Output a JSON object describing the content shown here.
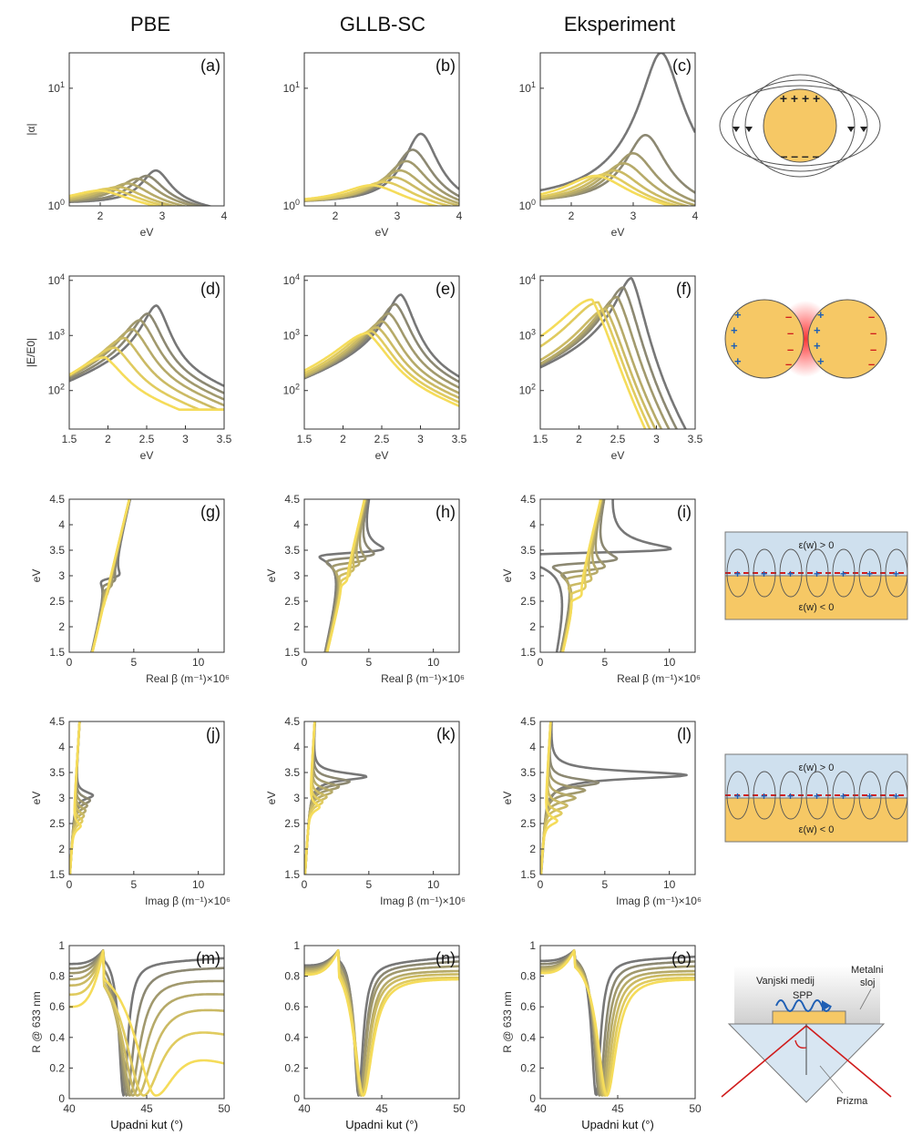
{
  "column_titles": [
    "PBE",
    "GLLB-SC",
    "Eksperiment"
  ],
  "colors": {
    "series_start": "#777777",
    "series_end": "#F5DC5A",
    "gold": "#F6C865",
    "light_blue": "#CFE0EE",
    "charge_plus": "#1f5fb4",
    "charge_minus": "#d01c1c",
    "axis": "#333333"
  },
  "chart_data": [
    {
      "panel": "(a)",
      "type": "line",
      "xlabel": "eV",
      "ylabel": "|α|",
      "xlim": [
        1.5,
        4
      ],
      "ylim": [
        1,
        20
      ],
      "yscale": "log",
      "xticks": [
        "2",
        "3",
        "4"
      ],
      "yticks": [
        "10^0",
        "10^1"
      ],
      "series": [
        {
          "peak_x": 2.9,
          "peak_y": 2.0
        },
        {
          "peak_x": 2.75,
          "peak_y": 1.8
        },
        {
          "peak_x": 2.6,
          "peak_y": 1.7
        },
        {
          "peak_x": 2.45,
          "peak_y": 1.55
        },
        {
          "peak_x": 2.3,
          "peak_y": 1.45
        },
        {
          "peak_x": 2.15,
          "peak_y": 1.4
        },
        {
          "peak_x": 2.0,
          "peak_y": 1.35
        }
      ]
    },
    {
      "panel": "(b)",
      "type": "line",
      "xlabel": "eV",
      "ylabel": "",
      "xlim": [
        1.5,
        4
      ],
      "ylim": [
        1,
        20
      ],
      "yscale": "log",
      "xticks": [
        "2",
        "3",
        "4"
      ],
      "yticks": [
        "10^0",
        "10^1"
      ],
      "series": [
        {
          "peak_x": 3.38,
          "peak_y": 4.1
        },
        {
          "peak_x": 3.25,
          "peak_y": 3.0
        },
        {
          "peak_x": 3.15,
          "peak_y": 2.4
        },
        {
          "peak_x": 3.05,
          "peak_y": 2.0
        },
        {
          "peak_x": 2.95,
          "peak_y": 1.75
        },
        {
          "peak_x": 2.8,
          "peak_y": 1.6
        },
        {
          "peak_x": 2.6,
          "peak_y": 1.5
        }
      ]
    },
    {
      "panel": "(c)",
      "type": "line",
      "xlabel": "eV",
      "ylabel": "",
      "xlim": [
        1.5,
        4
      ],
      "ylim": [
        1,
        20
      ],
      "yscale": "log",
      "xticks": [
        "2",
        "3",
        "4"
      ],
      "yticks": [
        "10^0",
        "10^1"
      ],
      "series": [
        {
          "peak_x": 3.45,
          "peak_y": 20
        },
        {
          "peak_x": 3.2,
          "peak_y": 4.0
        },
        {
          "peak_x": 3.0,
          "peak_y": 2.8
        },
        {
          "peak_x": 2.85,
          "peak_y": 2.3
        },
        {
          "peak_x": 2.7,
          "peak_y": 2.0
        },
        {
          "peak_x": 2.55,
          "peak_y": 1.85
        },
        {
          "peak_x": 2.4,
          "peak_y": 1.8
        }
      ]
    },
    {
      "panel": "(d)",
      "type": "line",
      "xlabel": "eV",
      "ylabel": "|E/E0|",
      "xlim": [
        1.5,
        3.5
      ],
      "ylim": [
        20,
        12000
      ],
      "yscale": "log",
      "xticks": [
        "1.5",
        "2",
        "2.5",
        "3",
        "3.5"
      ],
      "yticks": [
        "10^2",
        "10^3",
        "10^4"
      ],
      "series": [
        {
          "peak_x": 2.63,
          "peak_y": 3500
        },
        {
          "peak_x": 2.52,
          "peak_y": 2500
        },
        {
          "peak_x": 2.42,
          "peak_y": 1900
        },
        {
          "peak_x": 2.33,
          "peak_y": 1300
        },
        {
          "peak_x": 2.22,
          "peak_y": 900
        },
        {
          "peak_x": 2.1,
          "peak_y": 600
        },
        {
          "peak_x": 1.97,
          "peak_y": 400
        }
      ]
    },
    {
      "panel": "(e)",
      "type": "line",
      "xlabel": "eV",
      "ylabel": "",
      "xlim": [
        1.5,
        3.5
      ],
      "ylim": [
        20,
        12000
      ],
      "yscale": "log",
      "xticks": [
        "1.5",
        "2",
        "2.5",
        "3",
        "3.5"
      ],
      "yticks": [
        "10^2",
        "10^3",
        "10^4"
      ],
      "series": [
        {
          "peak_x": 2.75,
          "peak_y": 5500
        },
        {
          "peak_x": 2.68,
          "peak_y": 3700
        },
        {
          "peak_x": 2.6,
          "peak_y": 2500
        },
        {
          "peak_x": 2.52,
          "peak_y": 1800
        },
        {
          "peak_x": 2.45,
          "peak_y": 1400
        },
        {
          "peak_x": 2.38,
          "peak_y": 1200
        },
        {
          "peak_x": 2.32,
          "peak_y": 1100
        }
      ]
    },
    {
      "panel": "(f)",
      "type": "line",
      "xlabel": "eV",
      "ylabel": "",
      "xlim": [
        1.5,
        3.5
      ],
      "ylim": [
        20,
        12000
      ],
      "yscale": "log",
      "xticks": [
        "1.5",
        "2",
        "2.5",
        "3",
        "3.5"
      ],
      "yticks": [
        "10^2",
        "10^3",
        "10^4"
      ],
      "series": [
        {
          "peak_x": 2.68,
          "peak_y": 11000
        },
        {
          "peak_x": 2.58,
          "peak_y": 7500
        },
        {
          "peak_x": 2.5,
          "peak_y": 5000
        },
        {
          "peak_x": 2.42,
          "peak_y": 3500
        },
        {
          "peak_x": 2.35,
          "peak_y": 3000
        },
        {
          "peak_x": 2.25,
          "peak_y": 4000
        },
        {
          "peak_x": 2.17,
          "peak_y": 4500
        }
      ]
    },
    {
      "panel": "(g)",
      "type": "line",
      "xlabel": "Real β (m⁻¹)×10⁶",
      "ylabel": "eV",
      "xlim": [
        0,
        12
      ],
      "ylim": [
        1.5,
        4.5
      ],
      "xticks": [
        "0",
        "5",
        "10"
      ],
      "yticks": [
        "1.5",
        "2",
        "2.5",
        "3",
        "3.5",
        "4",
        "4.5"
      ],
      "series": [
        {
          "res_y": 2.95,
          "res_dx": 0.8
        },
        {
          "res_y": 2.85,
          "res_dx": 0.5
        },
        {
          "res_y": 2.75,
          "res_dx": 0.3
        },
        {
          "res_y": 2.7,
          "res_dx": 0.15
        },
        {
          "res_y": 2.6,
          "res_dx": 0.1
        },
        {
          "res_y": 2.5,
          "res_dx": 0.05
        },
        {
          "res_y": 2.4,
          "res_dx": 0.02
        }
      ]
    },
    {
      "panel": "(h)",
      "type": "line",
      "xlabel": "Real β (m⁻¹)×10⁶",
      "ylabel": "eV",
      "xlim": [
        0,
        12
      ],
      "ylim": [
        1.5,
        4.5
      ],
      "xticks": [
        "0",
        "5",
        "10"
      ],
      "yticks": [
        "1.5",
        "2",
        "2.5",
        "3",
        "3.5",
        "4",
        "4.5"
      ],
      "series": [
        {
          "res_y": 3.45,
          "res_dx": 3.0
        },
        {
          "res_y": 3.35,
          "res_dx": 2.2
        },
        {
          "res_y": 3.25,
          "res_dx": 1.5
        },
        {
          "res_y": 3.15,
          "res_dx": 1.0
        },
        {
          "res_y": 3.05,
          "res_dx": 0.6
        },
        {
          "res_y": 2.95,
          "res_dx": 0.35
        },
        {
          "res_y": 2.85,
          "res_dx": 0.2
        }
      ]
    },
    {
      "panel": "(i)",
      "type": "line",
      "xlabel": "Real β (m⁻¹)×10⁶",
      "ylabel": "eV",
      "xlim": [
        0,
        12
      ],
      "ylim": [
        1.5,
        4.5
      ],
      "xticks": [
        "0",
        "5",
        "10"
      ],
      "yticks": [
        "1.5",
        "2",
        "2.5",
        "3",
        "3.5",
        "4",
        "4.5"
      ],
      "series": [
        {
          "res_y": 3.45,
          "res_dx": 8.0
        },
        {
          "res_y": 3.25,
          "res_dx": 3.0
        },
        {
          "res_y": 3.1,
          "res_dx": 2.0
        },
        {
          "res_y": 3.0,
          "res_dx": 1.4
        },
        {
          "res_y": 2.85,
          "res_dx": 1.0
        },
        {
          "res_y": 2.7,
          "res_dx": 0.6
        },
        {
          "res_y": 2.55,
          "res_dx": 0.4
        }
      ]
    },
    {
      "panel": "(j)",
      "type": "line",
      "xlabel": "Imag β (m⁻¹)×10⁶",
      "ylabel": "eV",
      "xlim": [
        0,
        12
      ],
      "ylim": [
        1.5,
        4.5
      ],
      "xticks": [
        "0",
        "5",
        "10"
      ],
      "yticks": [
        "1.5",
        "2",
        "2.5",
        "3",
        "3.5",
        "4",
        "4.5"
      ],
      "series": [
        {
          "res_y": 3.05,
          "peak": 1.4
        },
        {
          "res_y": 2.95,
          "peak": 1.2
        },
        {
          "res_y": 2.85,
          "peak": 1.0
        },
        {
          "res_y": 2.75,
          "peak": 0.9
        },
        {
          "res_y": 2.65,
          "peak": 0.8
        },
        {
          "res_y": 2.55,
          "peak": 0.7
        },
        {
          "res_y": 2.45,
          "peak": 0.6
        }
      ]
    },
    {
      "panel": "(k)",
      "type": "line",
      "xlabel": "Imag β (m⁻¹)×10⁶",
      "ylabel": "eV",
      "xlim": [
        0,
        12
      ],
      "ylim": [
        1.5,
        4.5
      ],
      "xticks": [
        "0",
        "5",
        "10"
      ],
      "yticks": [
        "1.5",
        "2",
        "2.5",
        "3",
        "3.5",
        "4",
        "4.5"
      ],
      "series": [
        {
          "res_y": 3.42,
          "peak": 4.3
        },
        {
          "res_y": 3.32,
          "peak": 3.0
        },
        {
          "res_y": 3.22,
          "peak": 2.2
        },
        {
          "res_y": 3.12,
          "peak": 1.7
        },
        {
          "res_y": 3.02,
          "peak": 1.3
        },
        {
          "res_y": 2.92,
          "peak": 1.0
        },
        {
          "res_y": 2.82,
          "peak": 0.8
        }
      ]
    },
    {
      "panel": "(l)",
      "type": "line",
      "xlabel": "Imag β (m⁻¹)×10⁶",
      "ylabel": "eV",
      "xlim": [
        0,
        12
      ],
      "ylim": [
        1.5,
        4.5
      ],
      "xticks": [
        "0",
        "5",
        "10"
      ],
      "yticks": [
        "1.5",
        "2",
        "2.5",
        "3",
        "3.5",
        "4",
        "4.5"
      ],
      "series": [
        {
          "res_y": 3.45,
          "peak": 10.8
        },
        {
          "res_y": 3.3,
          "peak": 4.0
        },
        {
          "res_y": 3.15,
          "peak": 3.0
        },
        {
          "res_y": 3.0,
          "peak": 2.3
        },
        {
          "res_y": 2.85,
          "peak": 1.7
        },
        {
          "res_y": 2.7,
          "peak": 1.3
        },
        {
          "res_y": 2.55,
          "peak": 1.0
        }
      ]
    },
    {
      "panel": "(m)",
      "type": "line",
      "xlabel": "Upadni kut (°)",
      "ylabel": "R @ 633 nm",
      "xlim": [
        40,
        50
      ],
      "ylim": [
        0,
        1
      ],
      "xticks": [
        "40",
        "45",
        "50"
      ],
      "yticks": [
        "0",
        "0.2",
        "0.4",
        "0.6",
        "0.8",
        "1"
      ],
      "series": [
        {
          "base": 0.88,
          "dip_x": 43.5,
          "end": 0.92
        },
        {
          "base": 0.85,
          "dip_x": 43.7,
          "end": 0.86
        },
        {
          "base": 0.82,
          "dip_x": 43.9,
          "end": 0.78
        },
        {
          "base": 0.78,
          "dip_x": 44.1,
          "end": 0.7
        },
        {
          "base": 0.74,
          "dip_x": 44.4,
          "end": 0.6
        },
        {
          "base": 0.68,
          "dip_x": 44.8,
          "end": 0.45
        },
        {
          "base": 0.6,
          "dip_x": 45.6,
          "end": 0.26
        }
      ]
    },
    {
      "panel": "(n)",
      "type": "line",
      "xlabel": "Upadni kut (°)",
      "ylabel": "",
      "xlim": [
        40,
        50
      ],
      "ylim": [
        0,
        1
      ],
      "xticks": [
        "40",
        "45",
        "50"
      ],
      "yticks": [
        "0",
        "0.2",
        "0.4",
        "0.6",
        "0.8",
        "1"
      ],
      "series": [
        {
          "base": 0.87,
          "dip_x": 43.5,
          "end": 0.93
        },
        {
          "base": 0.86,
          "dip_x": 43.6,
          "end": 0.9
        },
        {
          "base": 0.85,
          "dip_x": 43.6,
          "end": 0.87
        },
        {
          "base": 0.84,
          "dip_x": 43.7,
          "end": 0.84
        },
        {
          "base": 0.83,
          "dip_x": 43.7,
          "end": 0.82
        },
        {
          "base": 0.82,
          "dip_x": 43.8,
          "end": 0.8
        },
        {
          "base": 0.81,
          "dip_x": 43.8,
          "end": 0.79
        }
      ]
    },
    {
      "panel": "(o)",
      "type": "line",
      "xlabel": "Upadni kut (°)",
      "ylabel": "R @ 633 nm",
      "xlim": [
        40,
        50
      ],
      "ylim": [
        0,
        1
      ],
      "xticks": [
        "40",
        "45",
        "50"
      ],
      "yticks": [
        "0",
        "0.2",
        "0.4",
        "0.6",
        "0.8",
        "1"
      ],
      "series": [
        {
          "base": 0.9,
          "dip_x": 43.6,
          "end": 0.93
        },
        {
          "base": 0.88,
          "dip_x": 43.8,
          "end": 0.9
        },
        {
          "base": 0.86,
          "dip_x": 43.9,
          "end": 0.87
        },
        {
          "base": 0.85,
          "dip_x": 44.0,
          "end": 0.84
        },
        {
          "base": 0.84,
          "dip_x": 44.1,
          "end": 0.82
        },
        {
          "base": 0.83,
          "dip_x": 44.2,
          "end": 0.8
        },
        {
          "base": 0.82,
          "dip_x": 44.3,
          "end": 0.79
        }
      ]
    }
  ],
  "diagrams": {
    "row4_eps_pos": "ε(w) > 0",
    "row4_eps_neg": "ε(w) < 0",
    "prism_labels": {
      "outer_medium": "Vanjski medij",
      "metal_layer_1": "Metalni",
      "metal_layer_2": "sloj",
      "spp": "SPP",
      "prism": "Prizma"
    }
  }
}
